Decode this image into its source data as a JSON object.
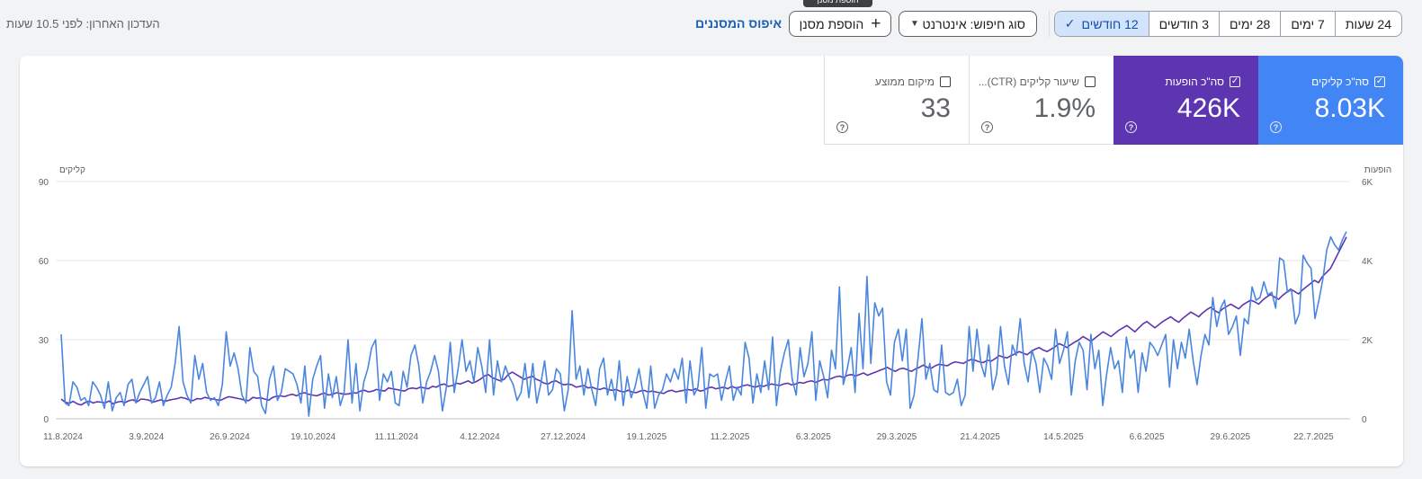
{
  "header": {
    "tooltip_text": "הוספת מסנן",
    "date_ranges": [
      {
        "label": "24 שעות",
        "selected": false
      },
      {
        "label": "7 ימים",
        "selected": false
      },
      {
        "label": "28 ימים",
        "selected": false
      },
      {
        "label": "3 חודשים",
        "selected": false
      },
      {
        "label": "12 חודשים",
        "selected": true
      }
    ],
    "search_type_label": "סוג חיפוש: אינטרנט",
    "add_filter_label": "הוספת מסנן",
    "reset_filters_label": "איפוס המסננים",
    "last_updated": "העדכון האחרון: לפני 10.5 שעות"
  },
  "metrics": [
    {
      "key": "clicks",
      "label": "סה\"כ קליקים",
      "value": "8.03K",
      "checked": true,
      "color": "#4285f4"
    },
    {
      "key": "impr",
      "label": "סה\"כ הופעות",
      "value": "426K",
      "checked": true,
      "color": "#5e35b1"
    },
    {
      "key": "ctr",
      "label": "שיעור קליקים (CTR)...",
      "value": "1.9%",
      "checked": false,
      "color": "#ffffff"
    },
    {
      "key": "pos",
      "label": "מיקום ממוצע",
      "value": "33",
      "checked": false,
      "color": "#ffffff"
    }
  ],
  "chart_data": {
    "type": "line",
    "left_axis_title": "קליקים",
    "right_axis_title": "הופעות",
    "left_ticks": [
      "90",
      "60",
      "30",
      "0"
    ],
    "right_ticks": [
      "6K",
      "4K",
      "2K",
      "0"
    ],
    "ylim_left": [
      0,
      90
    ],
    "ylim_right": [
      0,
      6000
    ],
    "x_tick_labels": [
      "11.8.2024",
      "3.9.2024",
      "26.9.2024",
      "19.10.2024",
      "11.11.2024",
      "4.12.2024",
      "27.12.2024",
      "19.1.2025",
      "11.2.2025",
      "6.3.2025",
      "29.3.2025",
      "21.4.2025",
      "14.5.2025",
      "6.6.2025",
      "29.6.2025",
      "22.7.2025"
    ],
    "grid": true,
    "series": [
      {
        "name": "קליקים",
        "axis": "left",
        "color": "#4a86e0",
        "values": [
          32,
          6,
          5,
          14,
          12,
          7,
          8,
          5,
          14,
          12,
          9,
          4,
          14,
          3,
          8,
          10,
          5,
          13,
          15,
          6,
          10,
          13,
          16,
          6,
          8,
          14,
          5,
          9,
          12,
          21,
          35,
          14,
          9,
          6,
          24,
          15,
          21,
          10,
          7,
          8,
          5,
          13,
          33,
          20,
          25,
          19,
          9,
          6,
          27,
          18,
          16,
          5,
          2,
          15,
          20,
          7,
          10,
          19,
          18,
          17,
          13,
          6,
          20,
          1,
          15,
          20,
          24,
          4,
          17,
          8,
          16,
          5,
          10,
          30,
          6,
          21,
          3,
          14,
          19,
          27,
          30,
          7,
          17,
          14,
          18,
          6,
          5,
          18,
          12,
          24,
          28,
          20,
          6,
          14,
          18,
          24,
          18,
          3,
          12,
          29,
          10,
          19,
          30,
          18,
          22,
          14,
          27,
          20,
          10,
          30,
          9,
          22,
          14,
          20,
          16,
          13,
          7,
          10,
          21,
          8,
          21,
          6,
          13,
          22,
          9,
          11,
          19,
          17,
          3,
          11,
          41,
          15,
          20,
          9,
          19,
          11,
          5,
          19,
          23,
          9,
          15,
          7,
          22,
          5,
          16,
          8,
          12,
          19,
          10,
          4,
          20,
          4,
          9,
          11,
          17,
          14,
          19,
          15,
          23,
          6,
          22,
          9,
          12,
          27,
          4,
          17,
          16,
          17,
          7,
          14,
          20,
          7,
          12,
          9,
          29,
          23,
          6,
          17,
          10,
          22,
          11,
          31,
          5,
          18,
          25,
          30,
          15,
          9,
          27,
          16,
          21,
          33,
          7,
          22,
          16,
          8,
          26,
          19,
          50,
          13,
          19,
          27,
          10,
          40,
          19,
          54,
          21,
          44,
          39,
          42,
          14,
          9,
          29,
          34,
          22,
          34,
          4,
          9,
          23,
          38,
          15,
          21,
          11,
          10,
          28,
          10,
          9,
          10,
          15,
          5,
          9,
          35,
          18,
          34,
          21,
          16,
          28,
          11,
          17,
          35,
          20,
          13,
          28,
          24,
          38,
          21,
          14,
          26,
          21,
          10,
          23,
          20,
          15,
          34,
          21,
          26,
          33,
          9,
          22,
          29,
          26,
          11,
          32,
          19,
          26,
          5,
          17,
          27,
          19,
          22,
          10,
          31,
          23,
          26,
          10,
          25,
          18,
          29,
          27,
          24,
          28,
          32,
          12,
          30,
          19,
          29,
          23,
          34,
          22,
          13,
          24,
          32,
          28,
          46,
          35,
          42,
          45,
          32,
          35,
          39,
          24,
          38,
          36,
          50,
          45,
          46,
          52,
          47,
          48,
          42,
          61,
          60,
          48,
          49,
          36,
          40,
          62,
          59,
          57,
          38,
          45,
          53,
          64,
          69,
          66,
          64,
          68,
          71
        ]
      },
      {
        "name": "הופעות",
        "axis": "right",
        "color": "#5e35b1",
        "values": [
          500,
          420,
          390,
          440,
          380,
          350,
          410,
          450,
          400,
          430,
          420,
          400,
          450,
          380,
          420,
          440,
          410,
          460,
          480,
          430,
          500,
          490,
          470,
          420,
          450,
          480,
          440,
          470,
          490,
          510,
          540,
          520,
          480,
          460,
          510,
          500,
          540,
          520,
          500,
          480,
          470,
          520,
          560,
          540,
          520,
          500,
          470,
          460,
          540,
          520,
          530,
          500,
          470,
          540,
          570,
          580,
          560,
          600,
          620,
          580,
          640,
          660,
          620,
          600,
          580,
          620,
          650,
          600,
          620,
          660,
          640,
          620,
          630,
          660,
          650,
          700,
          720,
          680,
          700,
          740,
          720,
          700,
          780,
          760,
          740,
          720,
          700,
          760,
          780,
          760,
          800,
          780,
          760,
          820,
          800,
          860,
          880,
          820,
          840,
          900,
          880,
          920,
          960,
          900,
          940,
          1000,
          1080,
          1120,
          1040,
          1000,
          960,
          1000,
          1120,
          1180,
          1120,
          1060,
          1000,
          1040,
          1080,
          1000,
          960,
          900,
          880,
          940,
          960,
          900,
          860,
          880,
          860,
          800,
          820,
          840,
          780,
          800,
          760,
          740,
          780,
          740,
          720,
          740,
          700,
          680,
          720,
          680,
          660,
          700,
          720,
          680,
          700,
          680,
          660,
          640,
          700,
          720,
          680,
          700,
          720,
          740,
          720,
          760,
          700,
          720,
          780,
          800,
          760,
          780,
          800,
          760,
          820,
          780,
          800,
          840,
          860,
          820,
          800,
          840,
          820,
          860,
          880,
          860,
          840,
          880,
          900,
          860,
          880,
          920,
          900,
          940,
          960,
          920,
          960,
          1000,
          980,
          1020,
          1060,
          1080,
          1040,
          1100,
          1120,
          1080,
          1120,
          1160,
          1100,
          1140,
          1180,
          1220,
          1260,
          1300,
          1240,
          1200,
          1260,
          1280,
          1240,
          1200,
          1260,
          1300,
          1360,
          1300,
          1280,
          1340,
          1380,
          1360,
          1340,
          1400,
          1440,
          1420,
          1400,
          1460,
          1500,
          1480,
          1440,
          1420,
          1480,
          1460,
          1520,
          1600,
          1560,
          1540,
          1600,
          1640,
          1700,
          1660,
          1620,
          1700,
          1760,
          1800,
          1740,
          1700,
          1760,
          1820,
          1900,
          1860,
          1800,
          1880,
          1940,
          2000,
          2080,
          2020,
          1960,
          2040,
          2120,
          2200,
          2140,
          2080,
          2160,
          2240,
          2300,
          2360,
          2280,
          2200,
          2300,
          2400,
          2460,
          2380,
          2300,
          2380,
          2460,
          2520,
          2580,
          2500,
          2440,
          2540,
          2620,
          2700,
          2640,
          2580,
          2680,
          2760,
          2820,
          2740,
          2680,
          2780,
          2840,
          2900,
          2840,
          2780,
          2880,
          2940,
          3000,
          2960,
          2900,
          3000,
          3080,
          3140,
          3080,
          3020,
          3120,
          3200,
          3280,
          3220,
          3160,
          3260,
          3340,
          3420,
          3500,
          3440,
          3600,
          3700,
          3800,
          4000,
          4200,
          4400,
          4600
        ]
      }
    ]
  }
}
